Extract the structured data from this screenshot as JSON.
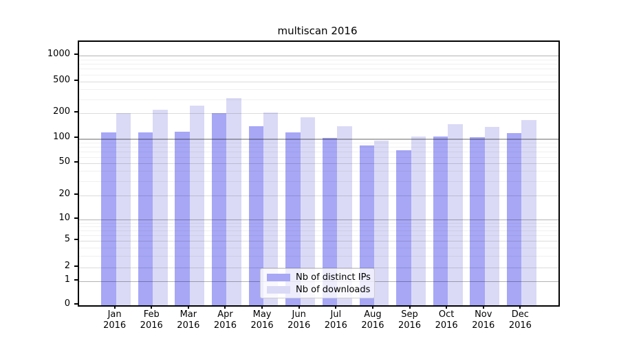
{
  "chart_data": {
    "type": "bar",
    "title": "multiscan 2016",
    "categories": [
      "Jan",
      "Feb",
      "Mar",
      "Apr",
      "May",
      "Jun",
      "Jul",
      "Aug",
      "Sep",
      "Oct",
      "Nov",
      "Dec"
    ],
    "category_year": "2016",
    "series": [
      {
        "name": "Nb of distinct IPs",
        "color": "#a7a7f6",
        "values": [
          119,
          120,
          121,
          200,
          140,
          120,
          103,
          83,
          73,
          106,
          104,
          117
        ]
      },
      {
        "name": "Nb of downloads",
        "color": "#dadaf6",
        "values": [
          200,
          221,
          249,
          313,
          207,
          181,
          141,
          95,
          107,
          148,
          139,
          167
        ]
      }
    ],
    "xlabel": "",
    "ylabel": "",
    "yaxis": {
      "scale": "log-like (0,1 then logarithmic)",
      "ticks": [
        0,
        1,
        2,
        5,
        10,
        20,
        50,
        100,
        200,
        500,
        1000
      ],
      "major_gridlines": [
        1,
        10,
        100,
        1000
      ],
      "mid_gridlines": [
        2,
        5,
        20,
        50,
        200,
        500
      ],
      "minor_gridlines": [
        3,
        4,
        6,
        7,
        8,
        9,
        30,
        40,
        60,
        70,
        80,
        90,
        300,
        400,
        600,
        700,
        800,
        900
      ],
      "ylim": [
        0,
        1300
      ]
    },
    "grid": true,
    "legend": {
      "position": "lower center",
      "entries": [
        "Nb of distinct IPs",
        "Nb of downloads"
      ]
    }
  }
}
